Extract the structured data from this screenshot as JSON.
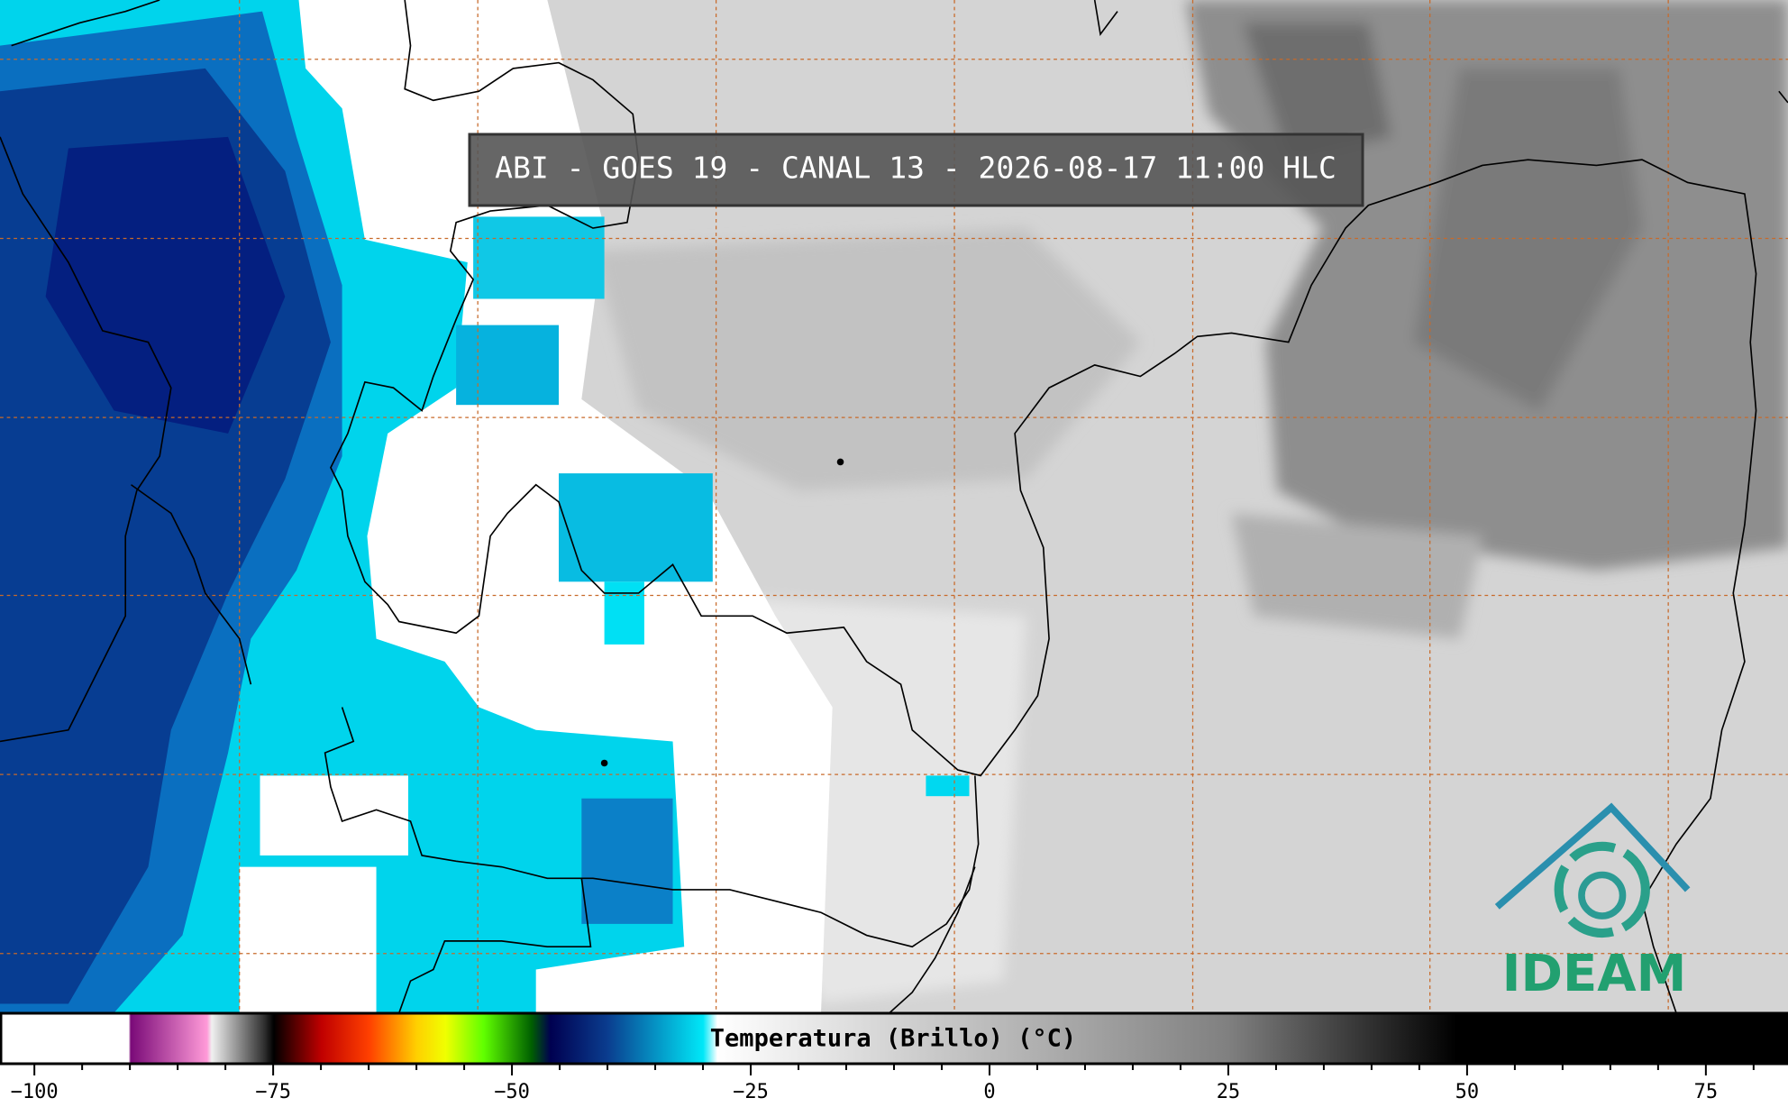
{
  "title": "ABI - GOES 19 - CANAL 13 - 2026-08-17 11:00 HLC",
  "logo": "IDEAM",
  "colorbar": {
    "label": "Temperatura (Brillo) (°C)",
    "xlim": [
      -103.6,
      83.6
    ],
    "xticks": [
      {
        "value": -100,
        "label": "−100"
      },
      {
        "value": -75,
        "label": "−75"
      },
      {
        "value": -50,
        "label": "−50"
      },
      {
        "value": -25,
        "label": "−25"
      },
      0,
      25,
      50,
      75
    ],
    "minor_xticks": [
      -95,
      -90,
      -85,
      -80,
      -70,
      -65,
      -60,
      -55,
      -45,
      -40,
      -35,
      -30,
      -20,
      -15,
      -10,
      -5,
      5,
      10,
      15,
      20,
      30,
      35,
      40,
      45,
      55,
      60,
      65,
      70,
      80
    ],
    "colormap": [
      {
        "value": -103.6,
        "color": "#ffffff"
      },
      {
        "value": -90.2,
        "color": "#ffffff"
      },
      {
        "value": -90,
        "color": "#7a0a78"
      },
      {
        "value": -82,
        "color": "#ff9ad8"
      },
      {
        "value": -81.5,
        "color": "#f0f0f0"
      },
      {
        "value": -76,
        "color": "#303030"
      },
      {
        "value": -75,
        "color": "#000000"
      },
      {
        "value": -70,
        "color": "#c00000"
      },
      {
        "value": -65,
        "color": "#ff4000"
      },
      {
        "value": -60,
        "color": "#ffd000"
      },
      {
        "value": -57,
        "color": "#f0ff00"
      },
      {
        "value": -53,
        "color": "#60ff00"
      },
      {
        "value": -48,
        "color": "#006000"
      },
      {
        "value": -46,
        "color": "#000050"
      },
      {
        "value": -40,
        "color": "#0a3d8f"
      },
      {
        "value": -30,
        "color": "#00e8f8"
      },
      {
        "value": -28.5,
        "color": "#ffffff"
      },
      {
        "value": 25,
        "color": "#808080"
      },
      {
        "value": 49,
        "color": "#000000"
      },
      {
        "value": 83.6,
        "color": "#000000"
      }
    ]
  }
}
